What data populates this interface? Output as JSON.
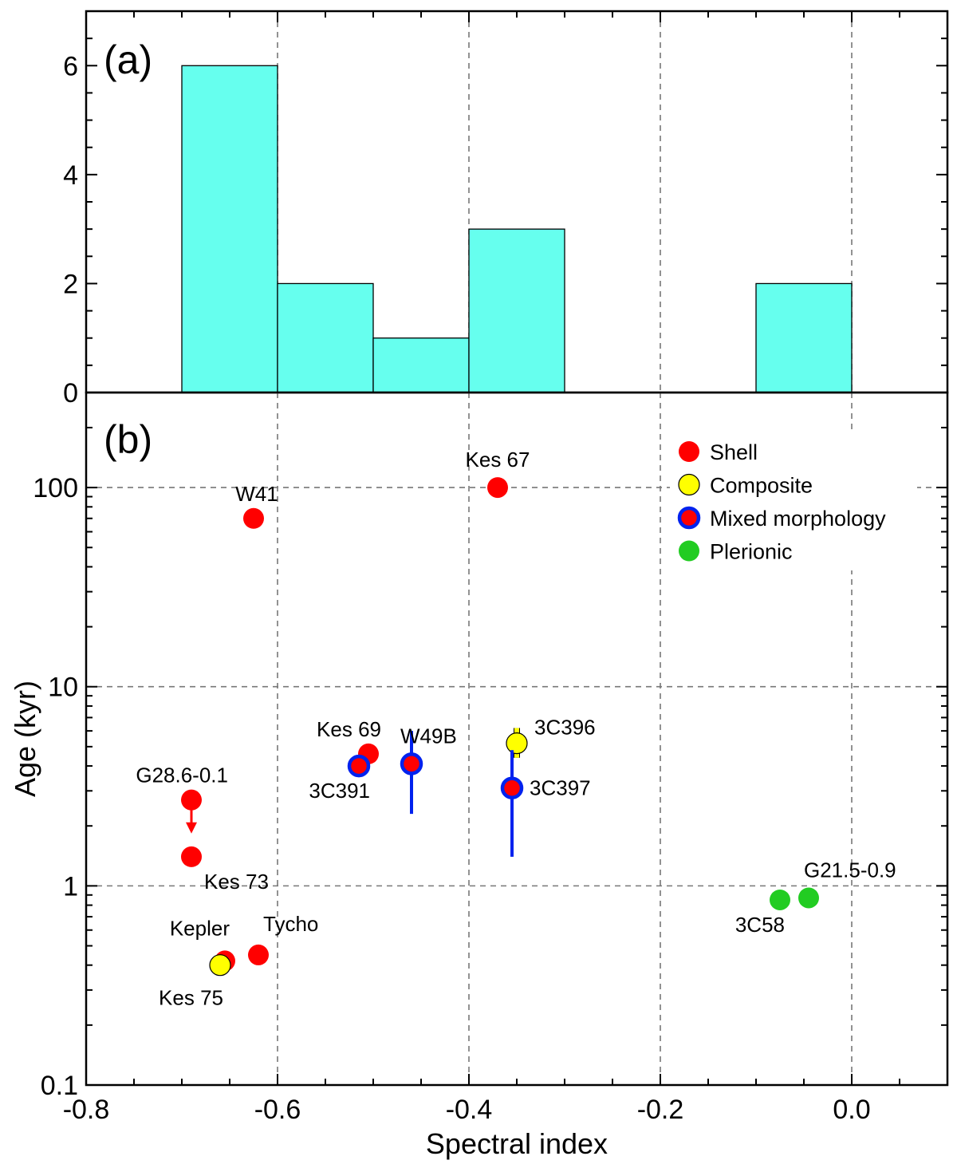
{
  "colors": {
    "hist_fill": "#66FFEE",
    "shell": "#FF0000",
    "composite": "#FFFF00",
    "mixed_ring": "#0022EE",
    "plerionic": "#22CC22",
    "grid": "#777777"
  },
  "chart_data": [
    {
      "panel": "(a)",
      "type": "bar",
      "bins": [
        {
          "from": -0.7,
          "to": -0.6,
          "count": 6
        },
        {
          "from": -0.6,
          "to": -0.5,
          "count": 2
        },
        {
          "from": -0.5,
          "to": -0.4,
          "count": 1
        },
        {
          "from": -0.4,
          "to": -0.3,
          "count": 3
        },
        {
          "from": -0.1,
          "to": 0.0,
          "count": 2
        }
      ],
      "xlim": [
        -0.8,
        0.1
      ],
      "ylim": [
        0,
        7
      ],
      "yticks": [
        "0",
        "2",
        "4",
        "6"
      ],
      "grid": true
    },
    {
      "panel": "(b)",
      "type": "scatter",
      "xlabel": "Spectral index",
      "ylabel": "Age (kyr)",
      "xlim": [
        -0.8,
        0.1
      ],
      "ylim": [
        0.1,
        300
      ],
      "yscale": "log",
      "xticks": [
        "-0.8",
        "-0.6",
        "-0.4",
        "-0.2",
        "0.0"
      ],
      "yticks": [
        "0.1",
        "1",
        "10",
        "100"
      ],
      "legend_position": "top-right",
      "legend": [
        {
          "label": "Shell",
          "style": "shell"
        },
        {
          "label": "Composite",
          "style": "composite"
        },
        {
          "label": "Mixed morphology",
          "style": "mixed"
        },
        {
          "label": "Plerionic",
          "style": "plerionic"
        }
      ],
      "points": [
        {
          "name": "Kes 67",
          "x": -0.37,
          "y": 100,
          "style": "shell",
          "anchor": "above"
        },
        {
          "name": "W41",
          "x": -0.625,
          "y": 70,
          "style": "shell",
          "anchor": "above-left"
        },
        {
          "name": "Kes 69",
          "x": -0.505,
          "y": 4.6,
          "style": "shell",
          "anchor": "above-left"
        },
        {
          "name": "3C391",
          "x": -0.515,
          "y": 4.0,
          "style": "mixed",
          "anchor": "below-left"
        },
        {
          "name": "W49B",
          "x": -0.46,
          "y": 4.1,
          "style": "mixed",
          "yerr": [
            2.3,
            6.0
          ],
          "anchor": "above-right"
        },
        {
          "name": "3C396",
          "x": -0.35,
          "y": 5.2,
          "style": "composite",
          "yerr": [
            4.4,
            6.2
          ],
          "anchor": "right"
        },
        {
          "name": "3C397",
          "x": -0.355,
          "y": 3.1,
          "style": "mixed",
          "yerr": [
            1.4,
            4.8
          ],
          "anchor": "right"
        },
        {
          "name": "G28.6-0.1",
          "x": -0.69,
          "y": 2.7,
          "style": "shell",
          "arrow_to": 1.9,
          "anchor": "above-left"
        },
        {
          "name": "Kes 73",
          "x": -0.69,
          "y": 1.4,
          "style": "shell",
          "anchor": "below-right"
        },
        {
          "name": "Tycho",
          "x": -0.62,
          "y": 0.45,
          "style": "shell",
          "anchor": "above-right"
        },
        {
          "name": "Kepler",
          "x": -0.655,
          "y": 0.42,
          "style": "shell",
          "anchor": "above-left"
        },
        {
          "name": "Kes 75",
          "x": -0.66,
          "y": 0.4,
          "style": "composite",
          "anchor": "below-left"
        },
        {
          "name": "3C58",
          "x": -0.075,
          "y": 0.85,
          "style": "plerionic",
          "anchor": "below-left"
        },
        {
          "name": "G21.5-0.9",
          "x": -0.045,
          "y": 0.87,
          "style": "plerionic",
          "anchor": "above-right"
        }
      ]
    }
  ]
}
